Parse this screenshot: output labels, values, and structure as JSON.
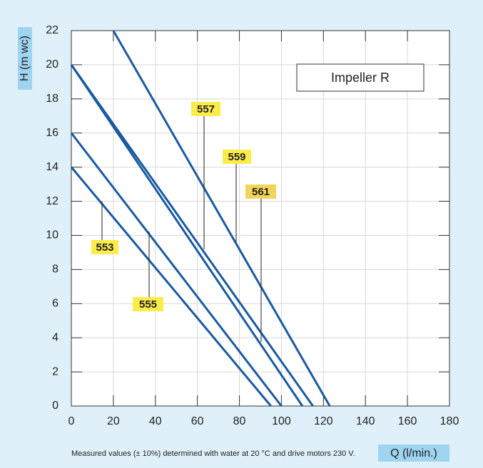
{
  "chart_data": {
    "type": "line",
    "ylabel": "H (m wc)",
    "xlabel": "Q (l/min.)",
    "annotation": "Impeller R",
    "footnote": "Measured values (± 10%) determined with water at 20 °C and drive motors 230 V.",
    "xlim": [
      0,
      180
    ],
    "ylim": [
      0,
      22
    ],
    "xticks": [
      0,
      20,
      40,
      60,
      80,
      100,
      120,
      140,
      160,
      180
    ],
    "yticks": [
      0,
      2,
      4,
      6,
      8,
      10,
      12,
      14,
      16,
      18,
      20,
      22
    ],
    "grid": true,
    "series": [
      {
        "name": "553",
        "color": "#1a5aa0",
        "x": [
          0,
          95
        ],
        "values": [
          14,
          0
        ]
      },
      {
        "name": "555",
        "color": "#1a5aa0",
        "x": [
          0,
          100
        ],
        "values": [
          16,
          0
        ]
      },
      {
        "name": "557",
        "color": "#1a5aa0",
        "x": [
          0,
          115
        ],
        "values": [
          20,
          0
        ]
      },
      {
        "name": "559",
        "color": "#1a5aa0",
        "x": [
          20,
          123
        ],
        "values": [
          22,
          0
        ]
      },
      {
        "name": "561",
        "color": "#1a5aa0",
        "x": [
          0,
          110
        ],
        "values": [
          20,
          0
        ]
      }
    ]
  }
}
